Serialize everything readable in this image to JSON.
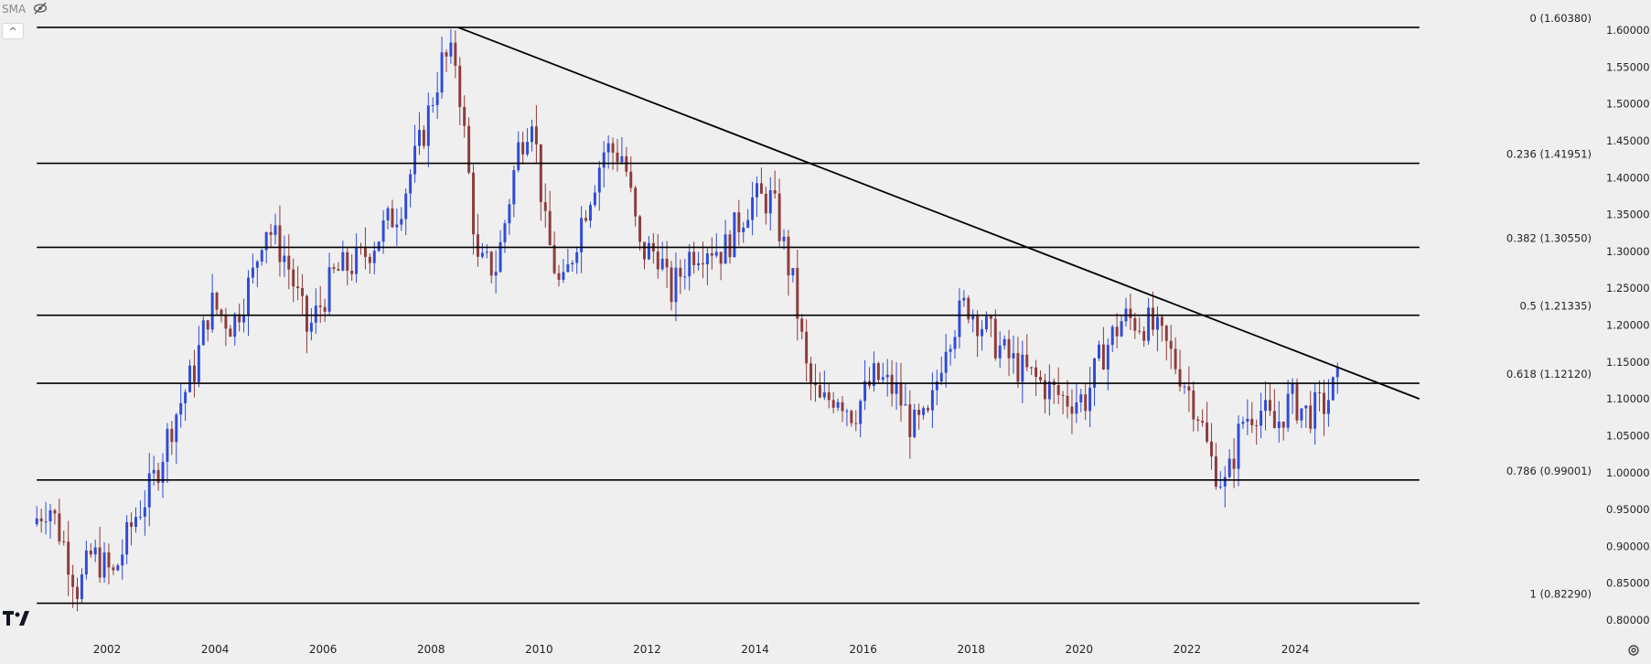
{
  "indicator": {
    "label": "SMA",
    "visibility_icon": "eye-slash-icon"
  },
  "controls": {
    "collapse_symbol": "^",
    "settings_icon": "gear-icon"
  },
  "chart_data": {
    "type": "candlestick",
    "timeframe": "monthly",
    "x_tick_labels": [
      "2002",
      "2004",
      "2006",
      "2008",
      "2010",
      "2012",
      "2014",
      "2016",
      "2018",
      "2020",
      "2022",
      "2024"
    ],
    "y_tick_labels": [
      "1.60000",
      "1.55000",
      "1.50000",
      "1.45000",
      "1.40000",
      "1.35000",
      "1.30000",
      "1.25000",
      "1.20000",
      "1.15000",
      "1.10000",
      "1.05000",
      "1.00000",
      "0.95000",
      "0.90000",
      "0.85000",
      "0.80000"
    ],
    "ylim": [
      0.8,
      1.6
    ],
    "xlim": [
      2000.7,
      2026.3
    ],
    "up_color": "#2f4bd6",
    "down_color": "#8e3b3b",
    "fib_levels": [
      {
        "ratio": 0,
        "price": 1.6038,
        "label": "0 (1.60380)"
      },
      {
        "ratio": 0.236,
        "price": 1.41951,
        "label": "0.236 (1.41951)"
      },
      {
        "ratio": 0.382,
        "price": 1.3055,
        "label": "0.382 (1.30550)"
      },
      {
        "ratio": 0.5,
        "price": 1.21335,
        "label": "0.5 (1.21335)"
      },
      {
        "ratio": 0.618,
        "price": 1.1212,
        "label": "0.618 (1.12120)"
      },
      {
        "ratio": 0.786,
        "price": 0.99001,
        "label": "0.786 (0.99001)"
      },
      {
        "ratio": 1,
        "price": 0.8229,
        "label": "1 (0.82290)"
      }
    ],
    "fib_x_start": 2000.7,
    "fib_x_end": 2026.3,
    "trendline": {
      "x1": 2008.5,
      "y1": 1.6038,
      "x2": 2026.3,
      "y2": 1.1
    },
    "anchors": [
      [
        2000.7,
        0.93
      ],
      [
        2001.0,
        0.96
      ],
      [
        2001.3,
        0.9
      ],
      [
        2001.55,
        0.84
      ],
      [
        2001.8,
        0.89
      ],
      [
        2002.2,
        0.86
      ],
      [
        2002.6,
        0.94
      ],
      [
        2002.9,
        0.98
      ],
      [
        2003.3,
        1.07
      ],
      [
        2003.7,
        1.14
      ],
      [
        2004.0,
        1.23
      ],
      [
        2004.4,
        1.2
      ],
      [
        2004.8,
        1.27
      ],
      [
        2005.0,
        1.34
      ],
      [
        2005.4,
        1.29
      ],
      [
        2005.8,
        1.19
      ],
      [
        2006.3,
        1.27
      ],
      [
        2006.8,
        1.29
      ],
      [
        2007.1,
        1.32
      ],
      [
        2007.5,
        1.36
      ],
      [
        2007.9,
        1.45
      ],
      [
        2008.3,
        1.56
      ],
      [
        2008.55,
        1.56
      ],
      [
        2008.8,
        1.39
      ],
      [
        2008.95,
        1.28
      ],
      [
        2009.3,
        1.28
      ],
      [
        2009.7,
        1.44
      ],
      [
        2009.95,
        1.49
      ],
      [
        2010.2,
        1.33
      ],
      [
        2010.5,
        1.24
      ],
      [
        2010.85,
        1.34
      ],
      [
        2011.3,
        1.44
      ],
      [
        2011.65,
        1.43
      ],
      [
        2011.95,
        1.3
      ],
      [
        2012.3,
        1.3
      ],
      [
        2012.5,
        1.24
      ],
      [
        2012.9,
        1.3
      ],
      [
        2013.2,
        1.31
      ],
      [
        2013.5,
        1.3
      ],
      [
        2014.0,
        1.37
      ],
      [
        2014.4,
        1.37
      ],
      [
        2014.8,
        1.25
      ],
      [
        2015.05,
        1.13
      ],
      [
        2015.3,
        1.09
      ],
      [
        2015.6,
        1.11
      ],
      [
        2015.9,
        1.08
      ],
      [
        2016.3,
        1.13
      ],
      [
        2016.7,
        1.11
      ],
      [
        2017.0,
        1.06
      ],
      [
        2017.3,
        1.07
      ],
      [
        2017.6,
        1.18
      ],
      [
        2018.0,
        1.23
      ],
      [
        2018.3,
        1.2
      ],
      [
        2018.7,
        1.16
      ],
      [
        2019.0,
        1.14
      ],
      [
        2019.4,
        1.12
      ],
      [
        2019.8,
        1.1
      ],
      [
        2020.2,
        1.1
      ],
      [
        2020.5,
        1.16
      ],
      [
        2020.9,
        1.21
      ],
      [
        2021.4,
        1.2
      ],
      [
        2021.7,
        1.17
      ],
      [
        2022.0,
        1.13
      ],
      [
        2022.3,
        1.08
      ],
      [
        2022.5,
        1.02
      ],
      [
        2022.8,
        0.98
      ],
      [
        2023.1,
        1.07
      ],
      [
        2023.4,
        1.09
      ],
      [
        2023.7,
        1.06
      ],
      [
        2024.0,
        1.1
      ],
      [
        2024.3,
        1.08
      ],
      [
        2024.6,
        1.09
      ],
      [
        2024.85,
        1.12
      ]
    ]
  }
}
